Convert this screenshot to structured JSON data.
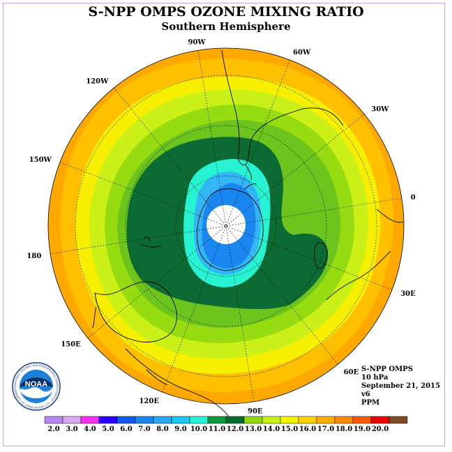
{
  "title": "S-NPP OMPS OZONE MIXING RATIO",
  "subtitle": "Southern Hemisphere",
  "longitude_labels": [
    "90W",
    "60W",
    "30W",
    "0",
    "30E",
    "60E",
    "90E",
    "120E",
    "150E",
    "180",
    "150W",
    "120W"
  ],
  "info": {
    "instrument": "S-NPP OMPS",
    "pressure": "10 hPa",
    "date": "September 21, 2015",
    "version": "v6",
    "units": "PPM"
  },
  "logo": {
    "text": "NOAA",
    "ring_text": "NATIONAL OCEANIC AND ATMOSPHERIC ADMINISTRATION · U.S. DEPARTMENT OF COMMERCE"
  },
  "colorbar": {
    "labels": [
      "2.0",
      "3.0",
      "4.0",
      "5.0",
      "6.0",
      "7.0",
      "8.0",
      "9.0",
      "10.0",
      "11.0",
      "12.0",
      "13.0",
      "14.0",
      "15.0",
      "16.0",
      "17.0",
      "18.0",
      "19.0",
      "20.0"
    ],
    "colors": [
      "#b986f0",
      "#d9a8f0",
      "#ff2ff6",
      "#2a00ff",
      "#0f58f0",
      "#1b86f0",
      "#28a8f5",
      "#1fc9f5",
      "#23f5d8",
      "#0a9a3e",
      "#066a30",
      "#8fd80c",
      "#c8f010",
      "#f4f400",
      "#ffd200",
      "#ffb000",
      "#ff8c00",
      "#ff5a00",
      "#ee0000",
      "#7e4a26"
    ]
  },
  "palette": {
    "outer": "#ffa800",
    "ring_orange": "#ffc000",
    "ring_yellow": "#f6f000",
    "ring_lightgreen": "#caf018",
    "ring_green": "#97dc10",
    "ring_midgreen": "#54b820",
    "ring_darkgreen": "#0b6b33",
    "ring_cyan": "#27f2d2",
    "ring_lightblue": "#33b6f6",
    "ring_blue": "#1a86ef",
    "pole_hole": "#ffffff"
  }
}
